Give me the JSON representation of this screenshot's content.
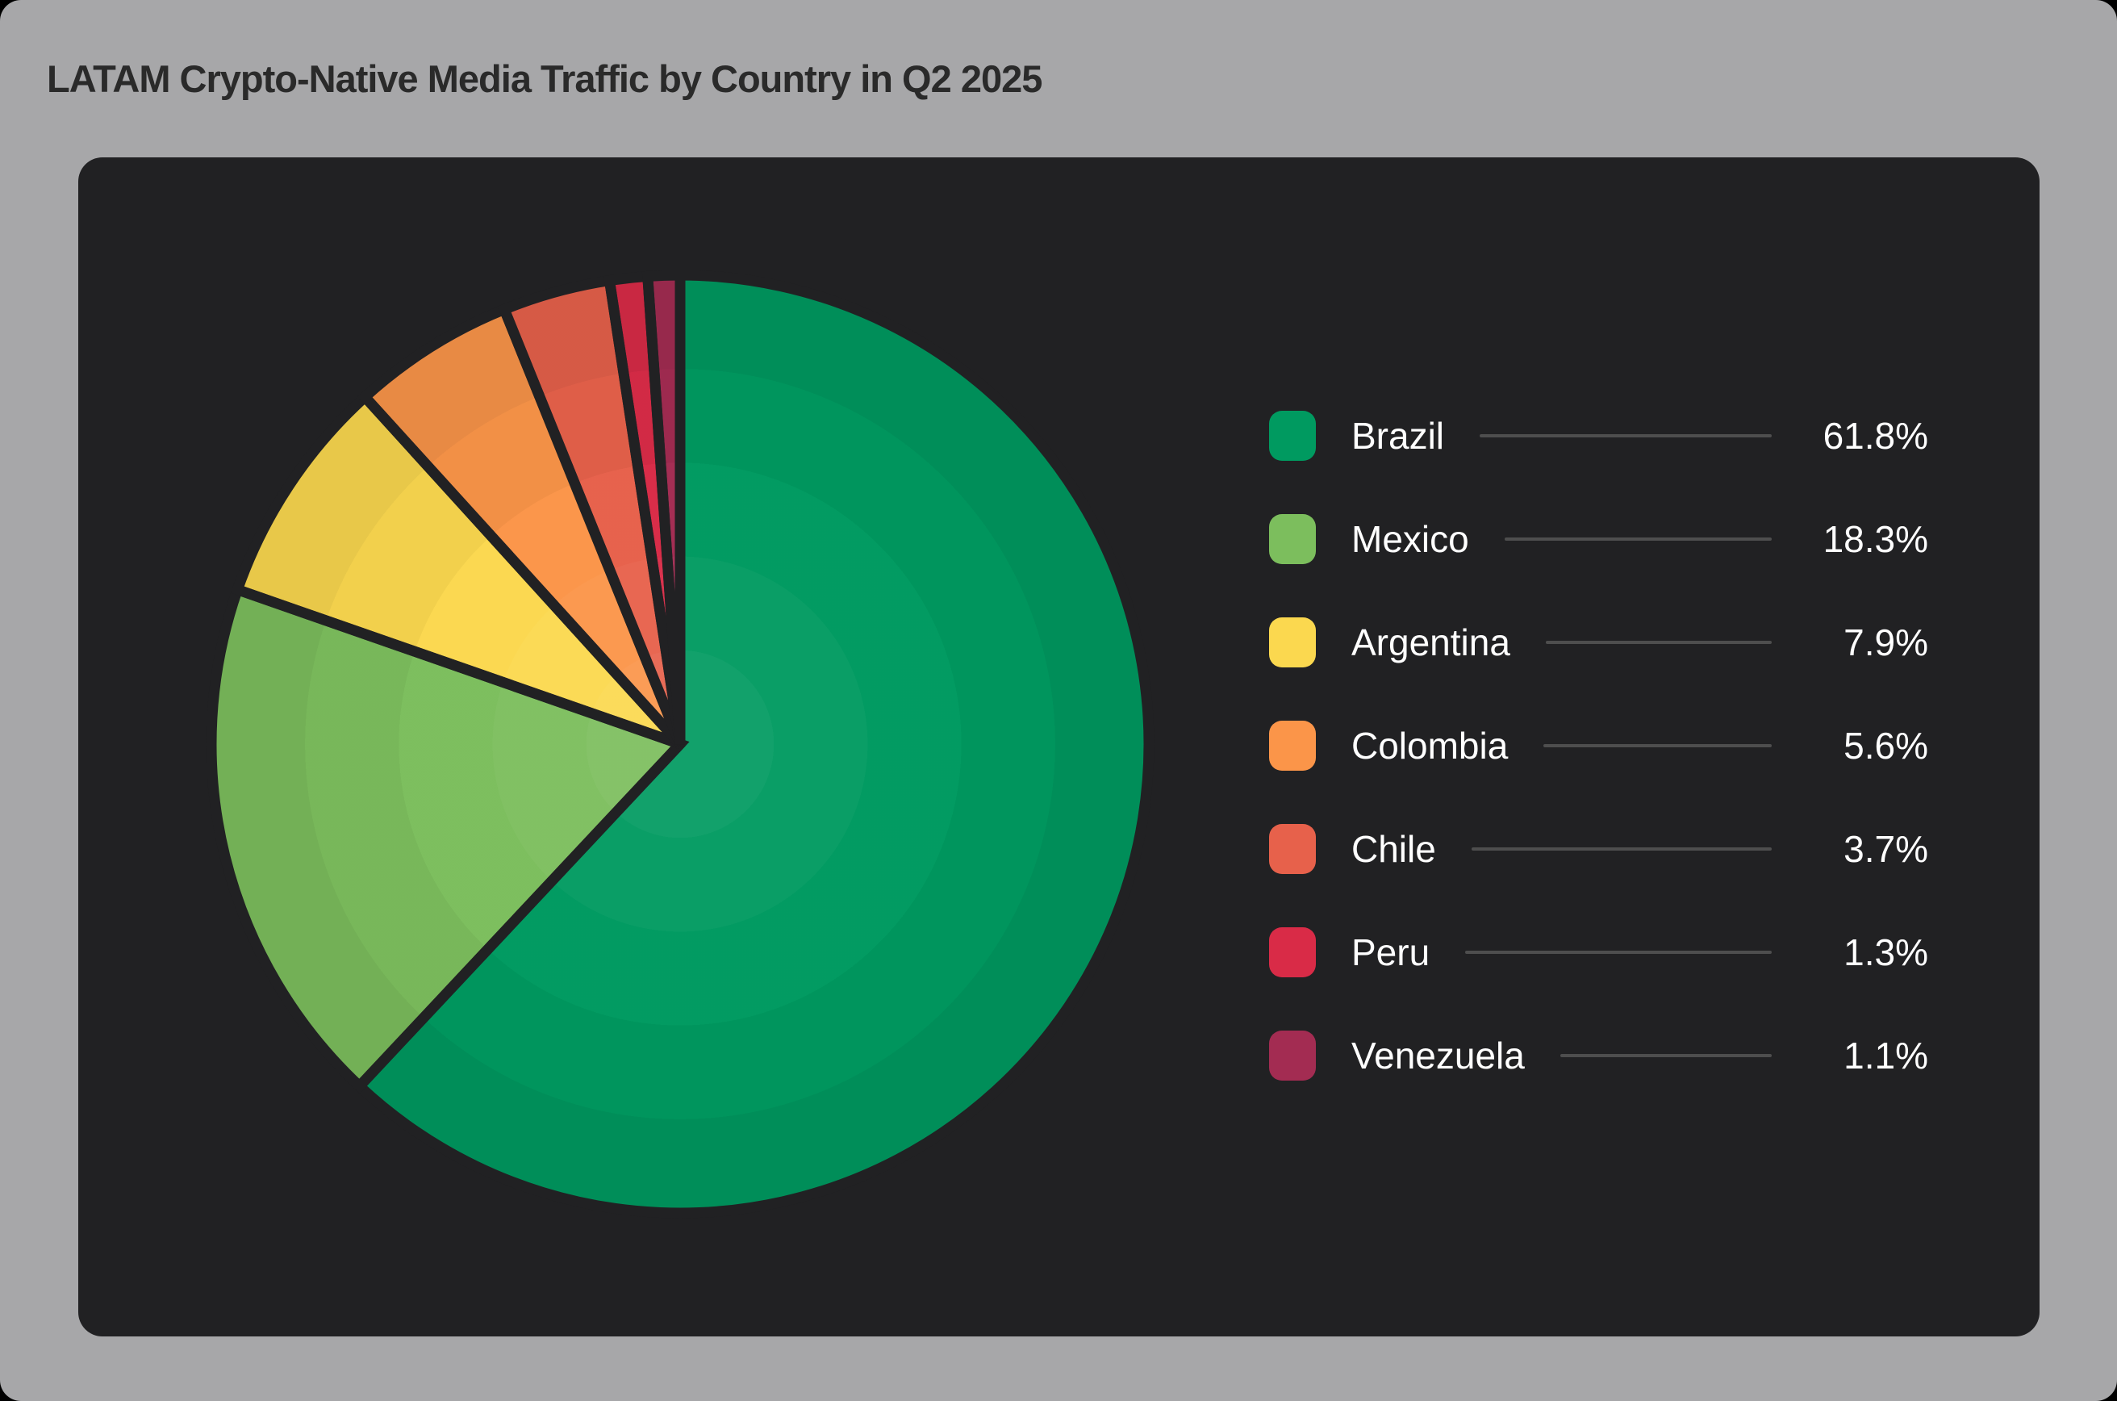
{
  "page": {
    "background_color": "#A7A7A9",
    "title": "LATAM Crypto-Native Media Traffic by Country in Q2 2025",
    "title_color": "#2A2A2A"
  },
  "card": {
    "background_color": "#212123"
  },
  "chart_data": {
    "type": "pie",
    "title": "LATAM Crypto-Native Media Traffic by Country in Q2 2025",
    "categories": [
      "Brazil",
      "Mexico",
      "Argentina",
      "Colombia",
      "Chile",
      "Peru",
      "Venezuela"
    ],
    "values": [
      61.8,
      18.3,
      7.9,
      5.6,
      3.7,
      1.3,
      1.1
    ],
    "value_labels": [
      "61.8%",
      "18.3%",
      "7.9%",
      "5.6%",
      "3.7%",
      "1.3%",
      "1.1%"
    ],
    "colors": [
      "#009A60",
      "#7CBE5D",
      "#FBD84F",
      "#FB9549",
      "#E7614B",
      "#D92B47",
      "#A32C52"
    ],
    "start_angle_deg": 0,
    "direction": "clockwise",
    "slice_gap_color": "#212123",
    "slice_gap_width": 13,
    "legend_position": "right",
    "legend_connector_color": "#4E4E4E"
  }
}
